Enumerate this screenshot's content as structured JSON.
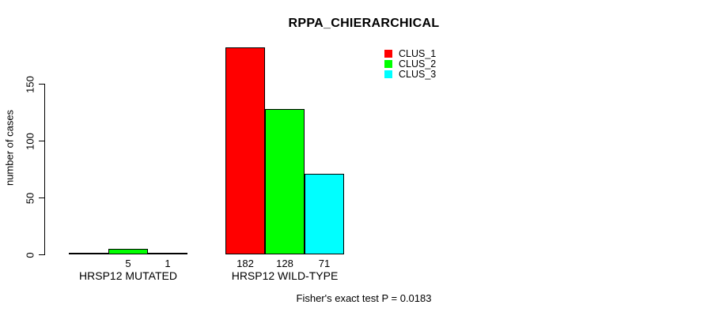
{
  "chart_data": {
    "type": "bar",
    "title": "RPPA_CHIERARCHICAL",
    "ylabel": "number of cases",
    "xlabel": "",
    "ylim": [
      0,
      150
    ],
    "yticks": [
      0,
      50,
      100,
      150
    ],
    "grid": false,
    "legend_position": "top-right",
    "categories": [
      "HRSP12 MUTATED",
      "HRSP12 WILD-TYPE"
    ],
    "series": [
      {
        "name": "CLUS_1",
        "color": "#ff0000",
        "values": [
          0,
          182
        ]
      },
      {
        "name": "CLUS_2",
        "color": "#00ff00",
        "values": [
          5,
          128
        ]
      },
      {
        "name": "CLUS_3",
        "color": "#00ffff",
        "values": [
          1,
          71
        ]
      }
    ],
    "bar_value_labels": [
      [
        "",
        "5",
        "1"
      ],
      [
        "182",
        "128",
        "71"
      ]
    ],
    "footnote": "Fisher's exact test P = 0.0183",
    "colors": {
      "bar_border": "#000000",
      "axis": "#000000",
      "text": "#000000",
      "background": "#ffffff"
    }
  }
}
